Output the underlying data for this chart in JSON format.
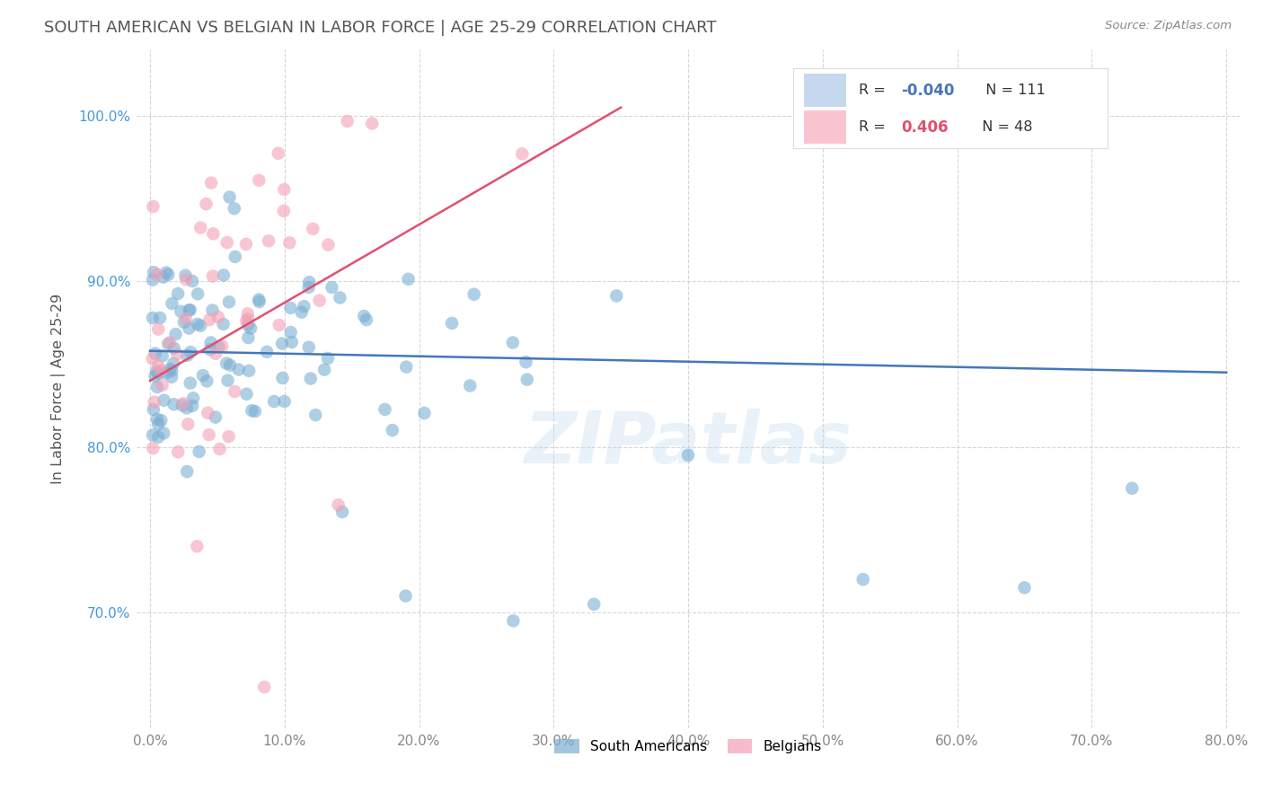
{
  "title": "SOUTH AMERICAN VS BELGIAN IN LABOR FORCE | AGE 25-29 CORRELATION CHART",
  "source": "Source: ZipAtlas.com",
  "ylabel": "In Labor Force | Age 25-29",
  "x_tick_labels": [
    "0.0%",
    "10.0%",
    "20.0%",
    "30.0%",
    "40.0%",
    "50.0%",
    "60.0%",
    "70.0%",
    "80.0%"
  ],
  "x_tick_values": [
    0.0,
    10.0,
    20.0,
    30.0,
    40.0,
    50.0,
    60.0,
    70.0,
    80.0
  ],
  "y_tick_labels": [
    "70.0%",
    "80.0%",
    "90.0%",
    "100.0%"
  ],
  "y_tick_values": [
    70.0,
    80.0,
    90.0,
    100.0
  ],
  "xlim": [
    -1.0,
    81.0
  ],
  "ylim": [
    63.0,
    104.0
  ],
  "blue_R": "-0.040",
  "blue_N": "111",
  "pink_R": "0.406",
  "pink_N": "48",
  "blue_dot_color": "#7BAFD4",
  "pink_dot_color": "#F4A0B5",
  "blue_line_color": "#4477BB",
  "pink_line_color": "#E05070",
  "background_color": "#FFFFFF",
  "grid_color": "#CCCCCC",
  "title_color": "#555555",
  "legend_fill_blue": "#C5D8EE",
  "legend_fill_pink": "#F9C4D0",
  "watermark_color": "#C0D8EE",
  "watermark_alpha": 0.35,
  "source_color": "#888888"
}
